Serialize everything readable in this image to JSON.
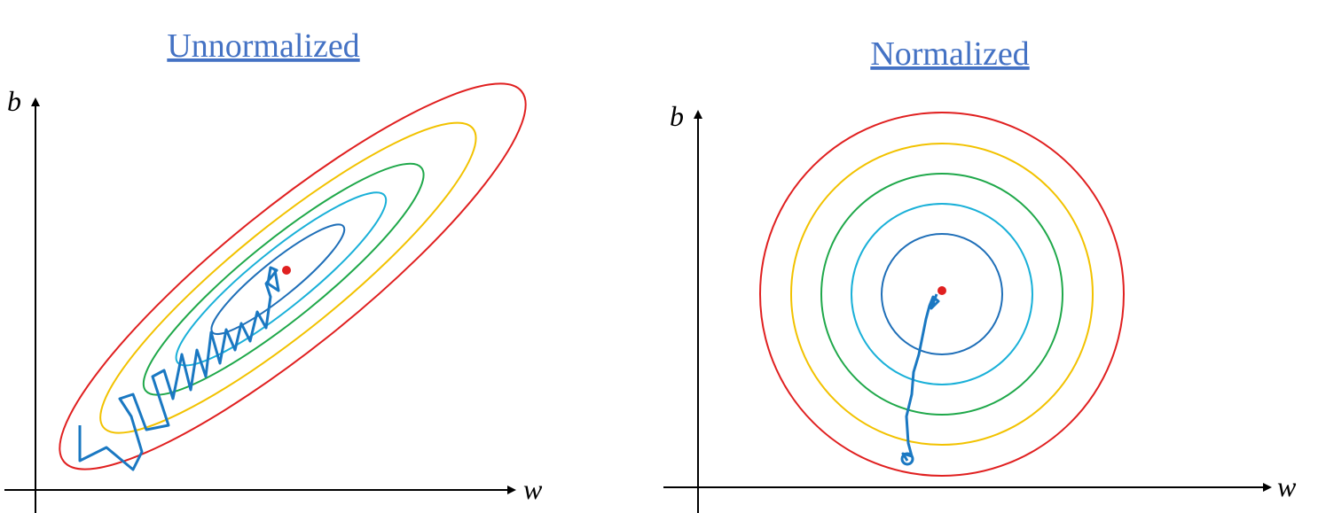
{
  "panels": [
    {
      "title": "Unnormalized",
      "y_axis": "b",
      "x_axis": "w"
    },
    {
      "title": "Normalized",
      "y_axis": "b",
      "x_axis": "w"
    }
  ]
}
